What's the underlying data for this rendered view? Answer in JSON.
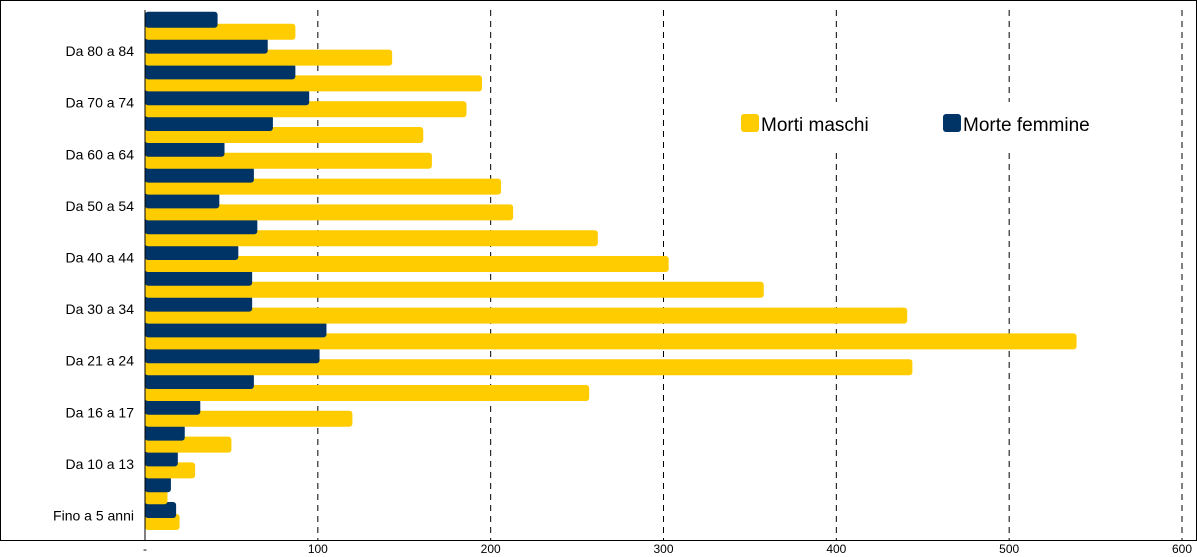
{
  "chart_data": {
    "type": "bar",
    "orientation": "horizontal",
    "categories_bottom_to_top": [
      "Fino a 5 anni",
      "",
      "Da 10 a 13",
      "",
      "Da 16 a 17",
      "",
      "Da 21 a 24",
      "",
      "Da 30 a 34",
      "",
      "Da 40 a 44",
      "",
      "Da 50 a 54",
      "",
      "Da 60 a 64",
      "",
      "Da 70 a 74",
      "",
      "Da 80 a 84",
      ""
    ],
    "series": [
      {
        "name": "Morti maschi",
        "color": "#FFCC00",
        "values": [
          20,
          13,
          29,
          50,
          120,
          257,
          444,
          539,
          441,
          358,
          303,
          262,
          213,
          206,
          166,
          161,
          186,
          195,
          143,
          87
        ]
      },
      {
        "name": "Morte femmine",
        "color": "#003366",
        "values": [
          18,
          15,
          19,
          23,
          32,
          63,
          101,
          105,
          62,
          62,
          54,
          65,
          43,
          63,
          46,
          74,
          95,
          87,
          71,
          42
        ]
      }
    ],
    "xlim": [
      0,
      600
    ],
    "x_tick_values": [
      0,
      100,
      200,
      300,
      400,
      500,
      600
    ],
    "x_tick_labels": [
      "-",
      "100",
      "200",
      "300",
      "400",
      "500",
      "600"
    ],
    "grid": "vertical dashed",
    "legend": "top-right"
  }
}
